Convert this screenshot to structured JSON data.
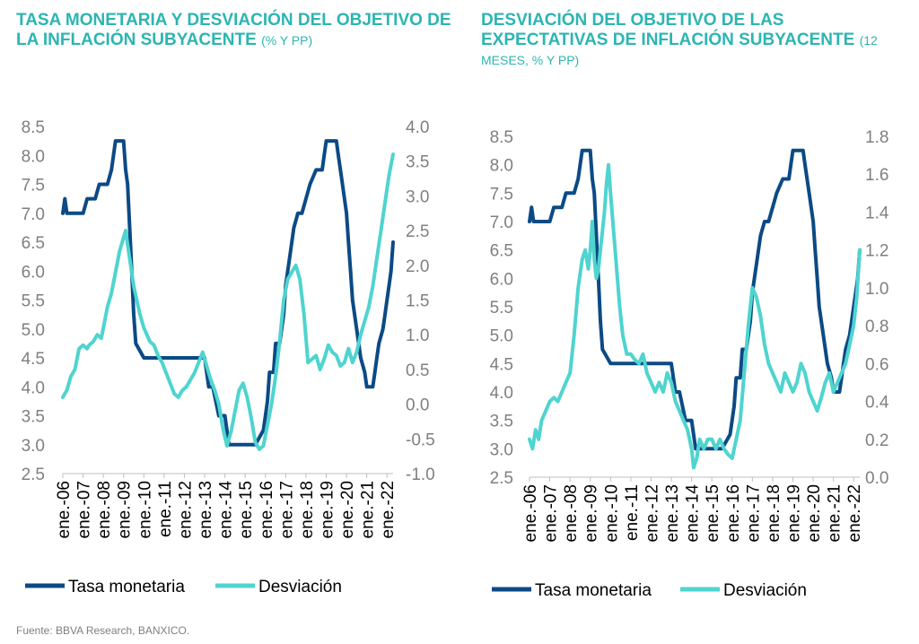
{
  "source": "Fuente: BBVA Research, BANXICO.",
  "colors": {
    "title": "#2cb5b2",
    "tasa": "#0b4a85",
    "desviacion": "#4fd4cf",
    "axis": "#bfbfbf",
    "tick": "#7f7f7f"
  },
  "chart_data": [
    {
      "type": "line",
      "title": "TASA MONETARIA Y DESVIACIÓN DEL OBJETIVO DE LA INFLACIÓN SUBYACENTE",
      "subtitle": "(% Y PP)",
      "xlabel": "",
      "ylabel": "",
      "x_ticks": [
        "ene.-06",
        "ene.-07",
        "ene.-08",
        "ene.-09",
        "ene.-10",
        "ene.-11",
        "ene.-12",
        "ene.-13",
        "ene.-14",
        "ene.-15",
        "ene.-16",
        "ene.-17",
        "ene.-18",
        "ene.-19",
        "ene.-20",
        "ene.-21",
        "ene.-22"
      ],
      "x_range": [
        2006.0,
        2022.3
      ],
      "y_left": {
        "range": [
          2.5,
          8.5
        ],
        "ticks": [
          "2.5",
          "3.0",
          "3.5",
          "4.0",
          "4.5",
          "5.0",
          "5.5",
          "6.0",
          "6.5",
          "7.0",
          "7.5",
          "8.0",
          "8.5"
        ]
      },
      "y_right": {
        "range": [
          -1.0,
          4.0
        ],
        "ticks": [
          "-1.0",
          "-0.5",
          "0.0",
          "0.5",
          "1.0",
          "1.5",
          "2.0",
          "2.5",
          "3.0",
          "3.5",
          "4.0"
        ]
      },
      "legend": "bottom",
      "grid": false,
      "series": [
        {
          "name": "Tasa monetaria",
          "axis": "left",
          "x": [
            2006.0,
            2006.1,
            2006.2,
            2006.3,
            2006.4,
            2006.5,
            2006.6,
            2006.8,
            2007.0,
            2007.2,
            2007.4,
            2007.6,
            2007.8,
            2008.0,
            2008.2,
            2008.4,
            2008.6,
            2008.8,
            2009.0,
            2009.1,
            2009.2,
            2009.3,
            2009.4,
            2009.5,
            2009.6,
            2010.0,
            2011.0,
            2012.0,
            2013.0,
            2013.2,
            2013.4,
            2013.7,
            2014.0,
            2014.2,
            2014.5,
            2014.8,
            2015.0,
            2015.5,
            2015.9,
            2016.1,
            2016.2,
            2016.4,
            2016.5,
            2016.7,
            2016.9,
            2017.0,
            2017.2,
            2017.4,
            2017.6,
            2017.8,
            2018.0,
            2018.2,
            2018.5,
            2018.8,
            2018.9,
            2019.0,
            2019.5,
            2019.6,
            2019.8,
            2020.0,
            2020.1,
            2020.2,
            2020.3,
            2020.5,
            2020.7,
            2020.9,
            2021.0,
            2021.3,
            2021.4,
            2021.5,
            2021.6,
            2021.8,
            2021.9,
            2022.0,
            2022.1,
            2022.2,
            2022.3
          ],
          "values": [
            7.0,
            7.25,
            7.0,
            7.0,
            7.0,
            7.0,
            7.0,
            7.0,
            7.0,
            7.25,
            7.25,
            7.25,
            7.5,
            7.5,
            7.5,
            7.75,
            8.25,
            8.25,
            8.25,
            7.75,
            7.5,
            6.75,
            6.0,
            5.25,
            4.75,
            4.5,
            4.5,
            4.5,
            4.5,
            4.0,
            4.0,
            3.5,
            3.5,
            3.0,
            3.0,
            3.0,
            3.0,
            3.0,
            3.25,
            3.75,
            4.25,
            4.25,
            4.75,
            4.75,
            5.25,
            5.75,
            6.25,
            6.75,
            7.0,
            7.0,
            7.25,
            7.5,
            7.75,
            7.75,
            8.0,
            8.25,
            8.25,
            8.0,
            7.5,
            7.0,
            6.5,
            6.0,
            5.5,
            5.0,
            4.5,
            4.25,
            4.0,
            4.0,
            4.25,
            4.5,
            4.75,
            5.0,
            5.25,
            5.5,
            5.75,
            6.0,
            6.5
          ]
        },
        {
          "name": "Desviación",
          "axis": "right",
          "x": [
            2006.0,
            2006.2,
            2006.4,
            2006.6,
            2006.8,
            2007.0,
            2007.2,
            2007.3,
            2007.5,
            2007.7,
            2007.9,
            2008.0,
            2008.2,
            2008.4,
            2008.6,
            2008.8,
            2009.0,
            2009.1,
            2009.2,
            2009.35,
            2009.5,
            2009.65,
            2009.8,
            2009.9,
            2010.0,
            2010.15,
            2010.3,
            2010.5,
            2010.7,
            2010.9,
            2011.1,
            2011.3,
            2011.5,
            2011.7,
            2011.9,
            2012.1,
            2012.3,
            2012.5,
            2012.7,
            2012.9,
            2013.1,
            2013.3,
            2013.5,
            2013.7,
            2013.9,
            2014.1,
            2014.3,
            2014.5,
            2014.7,
            2014.9,
            2015.1,
            2015.3,
            2015.5,
            2015.7,
            2015.9,
            2016.1,
            2016.3,
            2016.5,
            2016.7,
            2016.9,
            2017.1,
            2017.3,
            2017.5,
            2017.7,
            2017.9,
            2018.1,
            2018.3,
            2018.5,
            2018.7,
            2018.9,
            2019.1,
            2019.3,
            2019.5,
            2019.7,
            2019.9,
            2020.1,
            2020.3,
            2020.5,
            2020.7,
            2020.9,
            2021.1,
            2021.3,
            2021.5,
            2021.7,
            2021.9,
            2022.1,
            2022.3
          ],
          "values": [
            0.1,
            0.2,
            0.4,
            0.5,
            0.8,
            0.85,
            0.8,
            0.85,
            0.9,
            1.0,
            0.95,
            1.1,
            1.4,
            1.6,
            1.9,
            2.2,
            2.4,
            2.5,
            2.3,
            2.0,
            1.7,
            1.5,
            1.3,
            1.2,
            1.1,
            1.0,
            0.9,
            0.85,
            0.7,
            0.6,
            0.45,
            0.3,
            0.15,
            0.1,
            0.2,
            0.25,
            0.35,
            0.45,
            0.6,
            0.75,
            0.55,
            0.35,
            0.2,
            0.0,
            -0.35,
            -0.6,
            -0.4,
            -0.1,
            0.2,
            0.3,
            0.1,
            -0.2,
            -0.55,
            -0.65,
            -0.6,
            -0.3,
            0.0,
            0.4,
            0.9,
            1.5,
            1.8,
            1.9,
            2.0,
            1.8,
            1.3,
            0.6,
            0.65,
            0.7,
            0.5,
            0.65,
            0.85,
            0.75,
            0.7,
            0.55,
            0.6,
            0.8,
            0.6,
            0.75,
            1.0,
            1.2,
            1.4,
            1.7,
            2.1,
            2.5,
            2.9,
            3.3,
            3.6
          ]
        }
      ]
    },
    {
      "type": "line",
      "title": "DESVIACIÓN DEL OBJETIVO DE LAS EXPECTATIVAS DE INFLACIÓN SUBYACENTE",
      "subtitle": "(12 MESES, % Y PP)",
      "xlabel": "",
      "ylabel": "",
      "x_ticks": [
        "ene.-06",
        "ene.-07",
        "ene.-08",
        "ene.-09",
        "ene.-10",
        "ene.-11",
        "ene.-12",
        "ene.-13",
        "ene.-14",
        "ene.-15",
        "ene.-16",
        "ene.-17",
        "ene.-18",
        "ene.-19",
        "ene.-20",
        "ene.-21",
        "ene.-22"
      ],
      "x_range": [
        2006.0,
        2022.3
      ],
      "y_left": {
        "range": [
          2.5,
          8.5
        ],
        "ticks": [
          "2.5",
          "3.0",
          "3.5",
          "4.0",
          "4.5",
          "5.0",
          "5.5",
          "6.0",
          "6.5",
          "7.0",
          "7.5",
          "8.0",
          "8.5"
        ]
      },
      "y_right": {
        "range": [
          0.0,
          1.8
        ],
        "ticks": [
          "0.0",
          "0.2",
          "0.4",
          "0.6",
          "0.8",
          "1.0",
          "1.2",
          "1.4",
          "1.6",
          "1.8"
        ]
      },
      "legend": "bottom",
      "grid": false,
      "series": [
        {
          "name": "Tasa monetaria",
          "axis": "left",
          "x": [
            2006.0,
            2006.1,
            2006.2,
            2006.3,
            2006.4,
            2006.5,
            2006.6,
            2006.8,
            2007.0,
            2007.2,
            2007.4,
            2007.6,
            2007.8,
            2008.0,
            2008.2,
            2008.4,
            2008.6,
            2008.8,
            2009.0,
            2009.1,
            2009.2,
            2009.3,
            2009.4,
            2009.5,
            2009.6,
            2010.0,
            2011.0,
            2012.0,
            2013.0,
            2013.2,
            2013.4,
            2013.7,
            2014.0,
            2014.2,
            2014.5,
            2014.8,
            2015.0,
            2015.5,
            2015.9,
            2016.1,
            2016.2,
            2016.4,
            2016.5,
            2016.7,
            2016.9,
            2017.0,
            2017.2,
            2017.4,
            2017.6,
            2017.8,
            2018.0,
            2018.2,
            2018.5,
            2018.8,
            2018.9,
            2019.0,
            2019.5,
            2019.6,
            2019.8,
            2020.0,
            2020.1,
            2020.2,
            2020.3,
            2020.5,
            2020.7,
            2020.9,
            2021.0,
            2021.3,
            2021.4,
            2021.5,
            2021.6,
            2021.8,
            2021.9,
            2022.0,
            2022.1,
            2022.2,
            2022.3
          ],
          "values": [
            7.0,
            7.25,
            7.0,
            7.0,
            7.0,
            7.0,
            7.0,
            7.0,
            7.0,
            7.25,
            7.25,
            7.25,
            7.5,
            7.5,
            7.5,
            7.75,
            8.25,
            8.25,
            8.25,
            7.75,
            7.5,
            6.75,
            6.0,
            5.25,
            4.75,
            4.5,
            4.5,
            4.5,
            4.5,
            4.0,
            4.0,
            3.5,
            3.5,
            3.0,
            3.0,
            3.0,
            3.0,
            3.0,
            3.25,
            3.75,
            4.25,
            4.25,
            4.75,
            4.75,
            5.25,
            5.75,
            6.25,
            6.75,
            7.0,
            7.0,
            7.25,
            7.5,
            7.75,
            7.75,
            8.0,
            8.25,
            8.25,
            8.0,
            7.5,
            7.0,
            6.5,
            6.0,
            5.5,
            5.0,
            4.5,
            4.25,
            4.0,
            4.0,
            4.25,
            4.5,
            4.75,
            5.0,
            5.25,
            5.5,
            5.75,
            6.0,
            6.5
          ]
        },
        {
          "name": "Desviación",
          "axis": "right",
          "x": [
            2006.0,
            2006.15,
            2006.3,
            2006.45,
            2006.6,
            2006.8,
            2007.0,
            2007.2,
            2007.4,
            2007.6,
            2007.8,
            2008.0,
            2008.2,
            2008.4,
            2008.6,
            2008.75,
            2008.9,
            2009.0,
            2009.1,
            2009.2,
            2009.3,
            2009.4,
            2009.5,
            2009.6,
            2009.7,
            2009.8,
            2009.9,
            2010.0,
            2010.15,
            2010.3,
            2010.45,
            2010.6,
            2010.8,
            2011.0,
            2011.2,
            2011.4,
            2011.6,
            2011.8,
            2012.0,
            2012.2,
            2012.4,
            2012.6,
            2012.8,
            2013.0,
            2013.2,
            2013.4,
            2013.6,
            2013.8,
            2014.0,
            2014.1,
            2014.25,
            2014.4,
            2014.6,
            2014.8,
            2015.0,
            2015.2,
            2015.4,
            2015.6,
            2015.8,
            2016.0,
            2016.2,
            2016.4,
            2016.6,
            2016.8,
            2017.0,
            2017.2,
            2017.4,
            2017.6,
            2017.8,
            2018.0,
            2018.2,
            2018.4,
            2018.6,
            2018.8,
            2019.0,
            2019.2,
            2019.4,
            2019.6,
            2019.8,
            2020.0,
            2020.2,
            2020.4,
            2020.6,
            2020.8,
            2021.0,
            2021.2,
            2021.4,
            2021.6,
            2021.8,
            2022.0,
            2022.15,
            2022.3
          ],
          "values": [
            0.2,
            0.15,
            0.25,
            0.2,
            0.3,
            0.35,
            0.4,
            0.42,
            0.4,
            0.45,
            0.5,
            0.55,
            0.75,
            1.0,
            1.15,
            1.2,
            1.1,
            1.2,
            1.35,
            1.15,
            1.05,
            1.1,
            1.2,
            1.3,
            1.4,
            1.55,
            1.65,
            1.5,
            1.3,
            1.1,
            0.9,
            0.75,
            0.65,
            0.65,
            0.62,
            0.6,
            0.65,
            0.55,
            0.5,
            0.45,
            0.5,
            0.45,
            0.55,
            0.5,
            0.4,
            0.35,
            0.3,
            0.25,
            0.15,
            0.05,
            0.1,
            0.2,
            0.15,
            0.2,
            0.2,
            0.15,
            0.2,
            0.15,
            0.12,
            0.1,
            0.2,
            0.3,
            0.55,
            0.8,
            1.0,
            0.95,
            0.85,
            0.7,
            0.6,
            0.55,
            0.5,
            0.45,
            0.55,
            0.5,
            0.45,
            0.5,
            0.6,
            0.55,
            0.45,
            0.4,
            0.35,
            0.42,
            0.5,
            0.55,
            0.45,
            0.5,
            0.55,
            0.6,
            0.7,
            0.8,
            0.95,
            1.2
          ]
        }
      ]
    }
  ]
}
